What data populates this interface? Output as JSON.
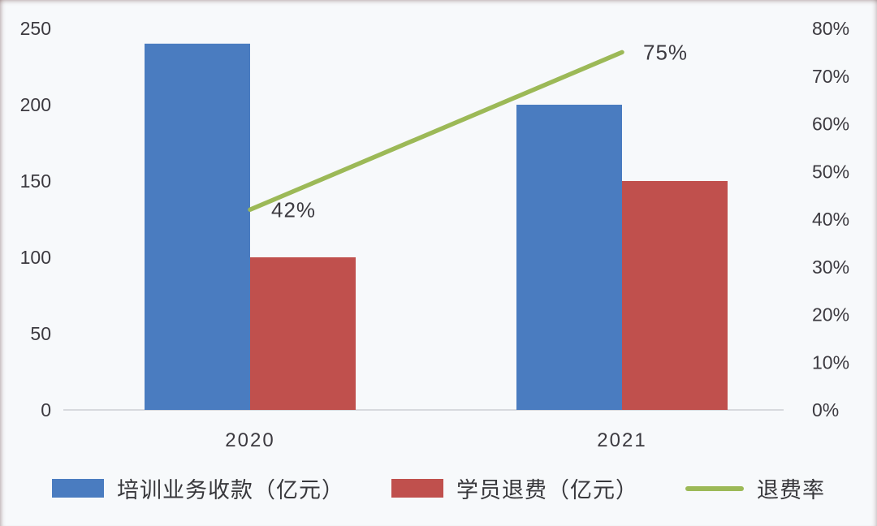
{
  "chart_data": {
    "type": "bar",
    "subtype": "combo-bar-line-dual-axis",
    "title": "",
    "categories": [
      "2020",
      "2021"
    ],
    "series": [
      {
        "name": "培训业务收款（亿元）",
        "chart": "bar",
        "axis": "left",
        "color": "#4a7cc0",
        "values": [
          240,
          200
        ]
      },
      {
        "name": "学员退费（亿元）",
        "chart": "bar",
        "axis": "left",
        "color": "#c0504d",
        "values": [
          100,
          150
        ]
      },
      {
        "name": "退费率",
        "chart": "line",
        "axis": "right",
        "color": "#9cb957",
        "values": [
          42,
          75
        ],
        "point_labels": [
          "42%",
          "75%"
        ]
      }
    ],
    "left_axis": {
      "min": 0,
      "max": 250,
      "tick_labels": [
        "0",
        "50",
        "100",
        "150",
        "200",
        "250"
      ]
    },
    "right_axis": {
      "min": 0,
      "max": 80,
      "tick_labels": [
        "0%",
        "10%",
        "20%",
        "30%",
        "40%",
        "50%",
        "60%",
        "70%",
        "80%"
      ]
    },
    "grid": false,
    "legend_position": "bottom",
    "background": "#f7f9fb",
    "axis_line_color": "#d8dade",
    "text_color": "#3c3a40"
  }
}
